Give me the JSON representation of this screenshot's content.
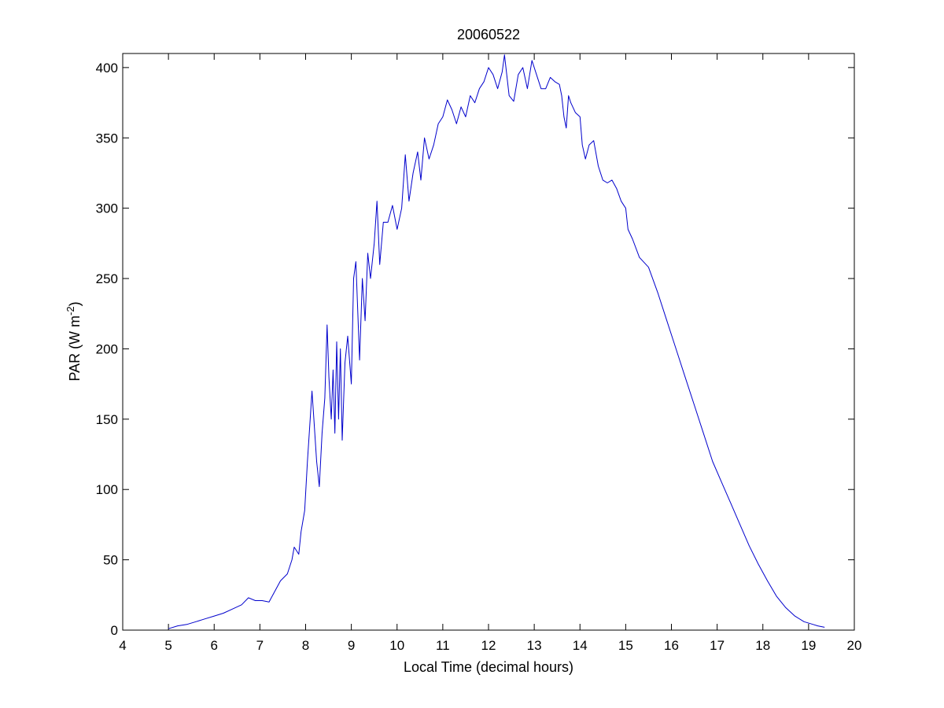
{
  "chart_data": {
    "type": "line",
    "title": "20060522",
    "xlabel": "Local Time (decimal hours)",
    "ylabel": {
      "text": "PAR (W m",
      "superscript": "-2",
      "suffix": ")"
    },
    "xlim": [
      4,
      20
    ],
    "ylim": [
      0,
      410
    ],
    "xticks": [
      4,
      5,
      6,
      7,
      8,
      9,
      10,
      11,
      12,
      13,
      14,
      15,
      16,
      17,
      18,
      19,
      20
    ],
    "yticks": [
      0,
      50,
      100,
      150,
      200,
      250,
      300,
      350,
      400
    ],
    "grid": false,
    "legend": "none",
    "series": [
      {
        "color": "#0000cc",
        "points": [
          [
            5.0,
            1
          ],
          [
            5.2,
            3
          ],
          [
            5.4,
            4
          ],
          [
            5.6,
            6
          ],
          [
            5.8,
            8
          ],
          [
            6.0,
            10
          ],
          [
            6.2,
            12
          ],
          [
            6.4,
            15
          ],
          [
            6.6,
            18
          ],
          [
            6.75,
            23
          ],
          [
            6.9,
            21
          ],
          [
            7.05,
            21
          ],
          [
            7.2,
            20
          ],
          [
            7.3,
            26
          ],
          [
            7.45,
            35
          ],
          [
            7.6,
            40
          ],
          [
            7.7,
            50
          ],
          [
            7.75,
            59
          ],
          [
            7.85,
            54
          ],
          [
            7.9,
            70
          ],
          [
            7.98,
            85
          ],
          [
            8.04,
            120
          ],
          [
            8.1,
            150
          ],
          [
            8.14,
            170
          ],
          [
            8.18,
            150
          ],
          [
            8.24,
            120
          ],
          [
            8.3,
            102
          ],
          [
            8.36,
            140
          ],
          [
            8.42,
            165
          ],
          [
            8.47,
            217
          ],
          [
            8.51,
            180
          ],
          [
            8.56,
            150
          ],
          [
            8.6,
            185
          ],
          [
            8.64,
            140
          ],
          [
            8.68,
            205
          ],
          [
            8.72,
            150
          ],
          [
            8.76,
            200
          ],
          [
            8.8,
            135
          ],
          [
            8.86,
            190
          ],
          [
            8.92,
            209
          ],
          [
            9.0,
            175
          ],
          [
            9.05,
            250
          ],
          [
            9.1,
            262
          ],
          [
            9.18,
            192
          ],
          [
            9.24,
            250
          ],
          [
            9.3,
            220
          ],
          [
            9.36,
            268
          ],
          [
            9.42,
            250
          ],
          [
            9.5,
            275
          ],
          [
            9.56,
            305
          ],
          [
            9.62,
            260
          ],
          [
            9.7,
            290
          ],
          [
            9.8,
            290
          ],
          [
            9.9,
            302
          ],
          [
            10.0,
            285
          ],
          [
            10.1,
            300
          ],
          [
            10.18,
            338
          ],
          [
            10.26,
            305
          ],
          [
            10.35,
            325
          ],
          [
            10.45,
            340
          ],
          [
            10.52,
            320
          ],
          [
            10.6,
            350
          ],
          [
            10.7,
            335
          ],
          [
            10.8,
            345
          ],
          [
            10.9,
            360
          ],
          [
            11.0,
            365
          ],
          [
            11.1,
            377
          ],
          [
            11.2,
            370
          ],
          [
            11.3,
            360
          ],
          [
            11.4,
            372
          ],
          [
            11.5,
            365
          ],
          [
            11.6,
            380
          ],
          [
            11.7,
            375
          ],
          [
            11.8,
            385
          ],
          [
            11.9,
            390
          ],
          [
            12.0,
            400
          ],
          [
            12.1,
            395
          ],
          [
            12.2,
            385
          ],
          [
            12.3,
            397
          ],
          [
            12.35,
            409
          ],
          [
            12.45,
            380
          ],
          [
            12.55,
            376
          ],
          [
            12.65,
            395
          ],
          [
            12.75,
            400
          ],
          [
            12.85,
            385
          ],
          [
            12.95,
            405
          ],
          [
            13.05,
            395
          ],
          [
            13.15,
            385
          ],
          [
            13.25,
            385
          ],
          [
            13.35,
            393
          ],
          [
            13.45,
            390
          ],
          [
            13.55,
            388
          ],
          [
            13.6,
            380
          ],
          [
            13.65,
            365
          ],
          [
            13.7,
            357
          ],
          [
            13.75,
            380
          ],
          [
            13.8,
            375
          ],
          [
            13.9,
            368
          ],
          [
            14.0,
            365
          ],
          [
            14.05,
            345
          ],
          [
            14.12,
            335
          ],
          [
            14.2,
            345
          ],
          [
            14.3,
            348
          ],
          [
            14.4,
            330
          ],
          [
            14.5,
            320
          ],
          [
            14.6,
            318
          ],
          [
            14.7,
            320
          ],
          [
            14.8,
            314
          ],
          [
            14.9,
            305
          ],
          [
            15.0,
            300
          ],
          [
            15.05,
            285
          ],
          [
            15.15,
            278
          ],
          [
            15.3,
            265
          ],
          [
            15.5,
            258
          ],
          [
            15.7,
            240
          ],
          [
            15.9,
            220
          ],
          [
            16.1,
            200
          ],
          [
            16.3,
            180
          ],
          [
            16.5,
            160
          ],
          [
            16.7,
            140
          ],
          [
            16.9,
            120
          ],
          [
            17.1,
            105
          ],
          [
            17.3,
            90
          ],
          [
            17.5,
            75
          ],
          [
            17.7,
            60
          ],
          [
            17.9,
            47
          ],
          [
            18.1,
            35
          ],
          [
            18.3,
            24
          ],
          [
            18.5,
            16
          ],
          [
            18.7,
            10
          ],
          [
            18.9,
            6
          ],
          [
            19.1,
            4
          ],
          [
            19.2,
            3
          ],
          [
            19.35,
            2
          ]
        ]
      }
    ]
  }
}
